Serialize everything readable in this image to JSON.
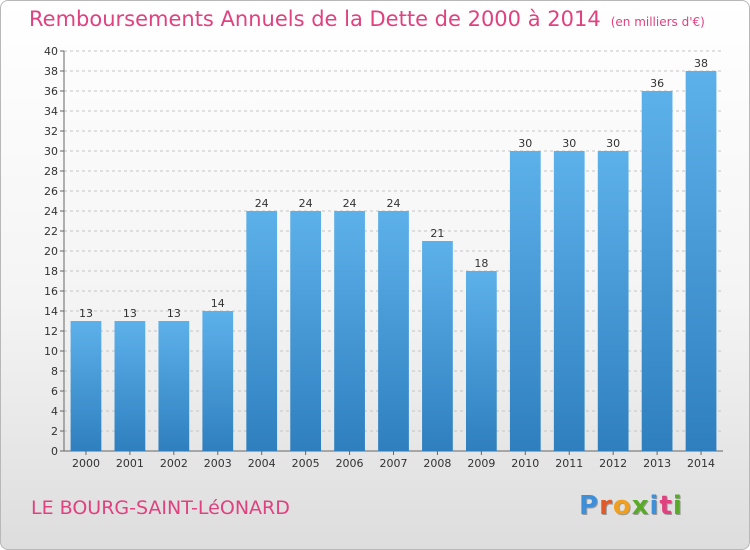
{
  "chart_data": {
    "type": "bar",
    "title": "Remboursements Annuels de la Dette de 2000 à 2014",
    "subtitle": "(en milliers d'€)",
    "categories": [
      "2000",
      "2001",
      "2002",
      "2003",
      "2004",
      "2005",
      "2006",
      "2007",
      "2008",
      "2009",
      "2010",
      "2011",
      "2012",
      "2013",
      "2014"
    ],
    "values": [
      13,
      13,
      13,
      14,
      24,
      24,
      24,
      24,
      21,
      18,
      30,
      30,
      30,
      36,
      38
    ],
    "xlabel": "",
    "ylabel": "",
    "ylim": [
      0,
      40
    ],
    "ytick_step": 2,
    "grid": "dashed horizontal",
    "bar_color": "#4aa3df"
  },
  "footer": {
    "town": "LE BOURG-SAINT-LéONARD",
    "brand_letters": [
      {
        "ch": "P",
        "color": "#3e8fd9"
      },
      {
        "ch": "r",
        "color": "#e05a2a"
      },
      {
        "ch": "o",
        "color": "#f0a020"
      },
      {
        "ch": "x",
        "color": "#5aaa2a"
      },
      {
        "ch": "i",
        "color": "#3e8fd9"
      },
      {
        "ch": "t",
        "color": "#e0417f"
      },
      {
        "ch": "i",
        "color": "#5aaa2a"
      }
    ]
  }
}
